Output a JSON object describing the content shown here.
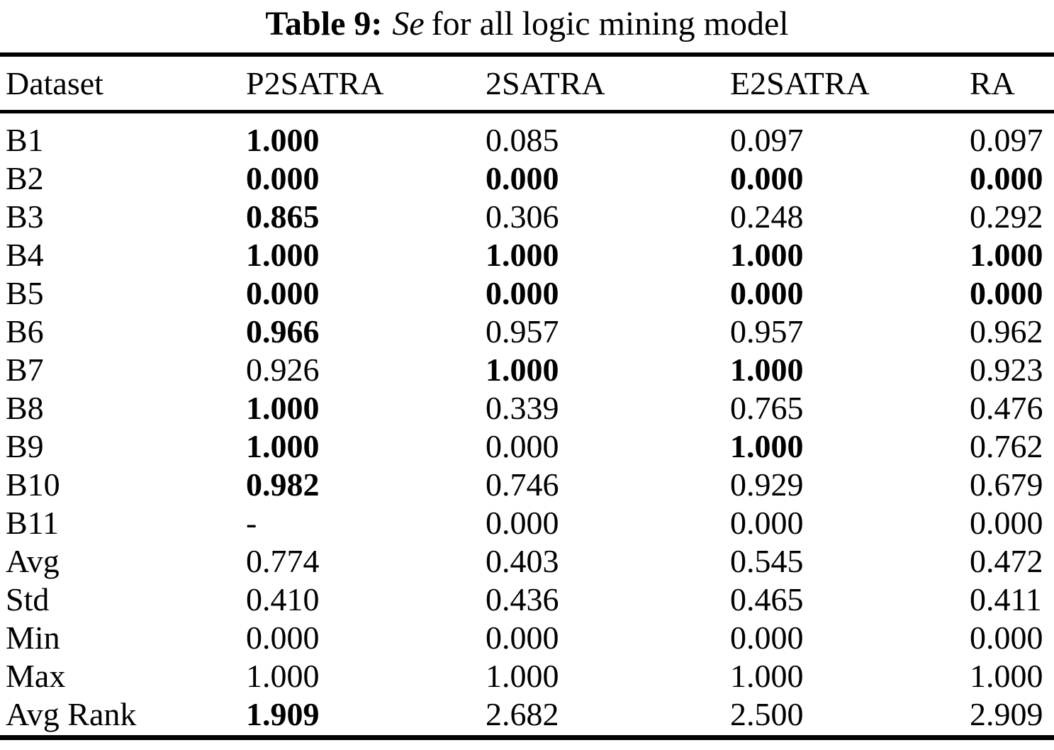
{
  "page": {
    "background_color": "#ffffff",
    "text_color": "#000000"
  },
  "title": {
    "label": "Table 9:",
    "metric": "Se",
    "rest": "for all logic mining model"
  },
  "table": {
    "headers": [
      "Dataset",
      "P2SATRA",
      "2SATRA",
      "E2SATRA",
      "RA"
    ],
    "rows": [
      {
        "label": "B1",
        "values": [
          {
            "v": "1.000",
            "bold": true
          },
          {
            "v": "0.085",
            "bold": false
          },
          {
            "v": "0.097",
            "bold": false
          },
          {
            "v": "0.097",
            "bold": false
          }
        ]
      },
      {
        "label": "B2",
        "values": [
          {
            "v": "0.000",
            "bold": true
          },
          {
            "v": "0.000",
            "bold": true
          },
          {
            "v": "0.000",
            "bold": true
          },
          {
            "v": "0.000",
            "bold": true
          }
        ]
      },
      {
        "label": "B3",
        "values": [
          {
            "v": "0.865",
            "bold": true
          },
          {
            "v": "0.306",
            "bold": false
          },
          {
            "v": "0.248",
            "bold": false
          },
          {
            "v": "0.292",
            "bold": false
          }
        ]
      },
      {
        "label": "B4",
        "values": [
          {
            "v": "1.000",
            "bold": true
          },
          {
            "v": "1.000",
            "bold": true
          },
          {
            "v": "1.000",
            "bold": true
          },
          {
            "v": "1.000",
            "bold": true
          }
        ]
      },
      {
        "label": "B5",
        "values": [
          {
            "v": "0.000",
            "bold": true
          },
          {
            "v": "0.000",
            "bold": true
          },
          {
            "v": "0.000",
            "bold": true
          },
          {
            "v": "0.000",
            "bold": true
          }
        ]
      },
      {
        "label": "B6",
        "values": [
          {
            "v": "0.966",
            "bold": true
          },
          {
            "v": "0.957",
            "bold": false
          },
          {
            "v": "0.957",
            "bold": false
          },
          {
            "v": "0.962",
            "bold": false
          }
        ]
      },
      {
        "label": "B7",
        "values": [
          {
            "v": "0.926",
            "bold": false
          },
          {
            "v": "1.000",
            "bold": true
          },
          {
            "v": "1.000",
            "bold": true
          },
          {
            "v": "0.923",
            "bold": false
          }
        ]
      },
      {
        "label": "B8",
        "values": [
          {
            "v": "1.000",
            "bold": true
          },
          {
            "v": "0.339",
            "bold": false
          },
          {
            "v": "0.765",
            "bold": false
          },
          {
            "v": "0.476",
            "bold": false
          }
        ]
      },
      {
        "label": "B9",
        "values": [
          {
            "v": "1.000",
            "bold": true
          },
          {
            "v": "0.000",
            "bold": false
          },
          {
            "v": "1.000",
            "bold": true
          },
          {
            "v": "0.762",
            "bold": false
          }
        ]
      },
      {
        "label": "B10",
        "values": [
          {
            "v": "0.982",
            "bold": true
          },
          {
            "v": "0.746",
            "bold": false
          },
          {
            "v": "0.929",
            "bold": false
          },
          {
            "v": "0.679",
            "bold": false
          }
        ]
      },
      {
        "label": "B11",
        "values": [
          {
            "v": "-",
            "bold": false
          },
          {
            "v": "0.000",
            "bold": false
          },
          {
            "v": "0.000",
            "bold": false
          },
          {
            "v": "0.000",
            "bold": false
          }
        ]
      },
      {
        "label": "Avg",
        "values": [
          {
            "v": "0.774",
            "bold": false
          },
          {
            "v": "0.403",
            "bold": false
          },
          {
            "v": "0.545",
            "bold": false
          },
          {
            "v": "0.472",
            "bold": false
          }
        ]
      },
      {
        "label": "Std",
        "values": [
          {
            "v": "0.410",
            "bold": false
          },
          {
            "v": "0.436",
            "bold": false
          },
          {
            "v": "0.465",
            "bold": false
          },
          {
            "v": "0.411",
            "bold": false
          }
        ]
      },
      {
        "label": "Min",
        "values": [
          {
            "v": "0.000",
            "bold": false
          },
          {
            "v": "0.000",
            "bold": false
          },
          {
            "v": "0.000",
            "bold": false
          },
          {
            "v": "0.000",
            "bold": false
          }
        ]
      },
      {
        "label": "Max",
        "values": [
          {
            "v": "1.000",
            "bold": false
          },
          {
            "v": "1.000",
            "bold": false
          },
          {
            "v": "1.000",
            "bold": false
          },
          {
            "v": "1.000",
            "bold": false
          }
        ]
      },
      {
        "label": "Avg Rank",
        "values": [
          {
            "v": "1.909",
            "bold": true
          },
          {
            "v": "2.682",
            "bold": false
          },
          {
            "v": "2.500",
            "bold": false
          },
          {
            "v": "2.909",
            "bold": false
          }
        ]
      }
    ]
  }
}
